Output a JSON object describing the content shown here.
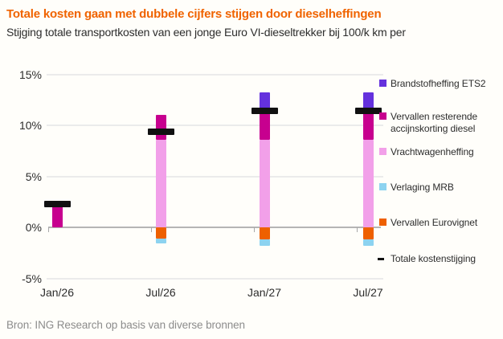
{
  "header": {
    "title": "Totale kosten gaan met dubbele cijfers stijgen door dieselheffingen",
    "subtitle": "Stijging totale transportkosten van een jonge Euro VI-dieseltrekker bij 100/k km per"
  },
  "footer": {
    "source": "Bron: ING Research op basis van diverse bronnen"
  },
  "colors": {
    "title": "#f06300",
    "text": "#2d2d2d",
    "muted": "#8c8c8c",
    "grid": "#ebebeb",
    "zero_axis": "#b5b5b5",
    "background": "#fffefa"
  },
  "chart_data": {
    "type": "bar",
    "stacked": true,
    "unit": "%",
    "categories": [
      "Jan/26",
      "Jul/26",
      "Jan/27",
      "Jul/27"
    ],
    "series": [
      {
        "name": "Brandstofheffing ETS2",
        "color": "#6431dd",
        "role": "stack",
        "values": [
          0,
          0,
          1.7,
          1.7
        ]
      },
      {
        "name": "Vervallen resterende accijnskorting diesel",
        "color": "#c7008f",
        "role": "stack",
        "values": [
          2.3,
          2.4,
          2.9,
          2.9
        ]
      },
      {
        "name": "Vrachtwagenheffing",
        "color": "#f2a0e9",
        "role": "stack",
        "values": [
          0,
          8.6,
          8.6,
          8.6
        ]
      },
      {
        "name": "Verlaging MRB",
        "color": "#8dd3f0",
        "role": "stack",
        "values": [
          0,
          -0.5,
          -0.6,
          -0.6
        ]
      },
      {
        "name": "Vervallen Eurovignet",
        "color": "#ee6000",
        "role": "stack",
        "values": [
          0,
          -1.1,
          -1.2,
          -1.2
        ]
      },
      {
        "name": "Totale kostenstijging",
        "color": "#111111",
        "role": "total-marker",
        "values": [
          2.3,
          9.4,
          11.4,
          11.4
        ]
      }
    ],
    "ylim": [
      -5,
      15
    ],
    "yticks": [
      {
        "value": 15,
        "label": "15%"
      },
      {
        "value": 10,
        "label": "10%"
      },
      {
        "value": 5,
        "label": "5%"
      },
      {
        "value": 0,
        "label": "0%"
      },
      {
        "value": -5,
        "label": "-5%"
      }
    ],
    "grid": true,
    "legend_position": "right"
  }
}
